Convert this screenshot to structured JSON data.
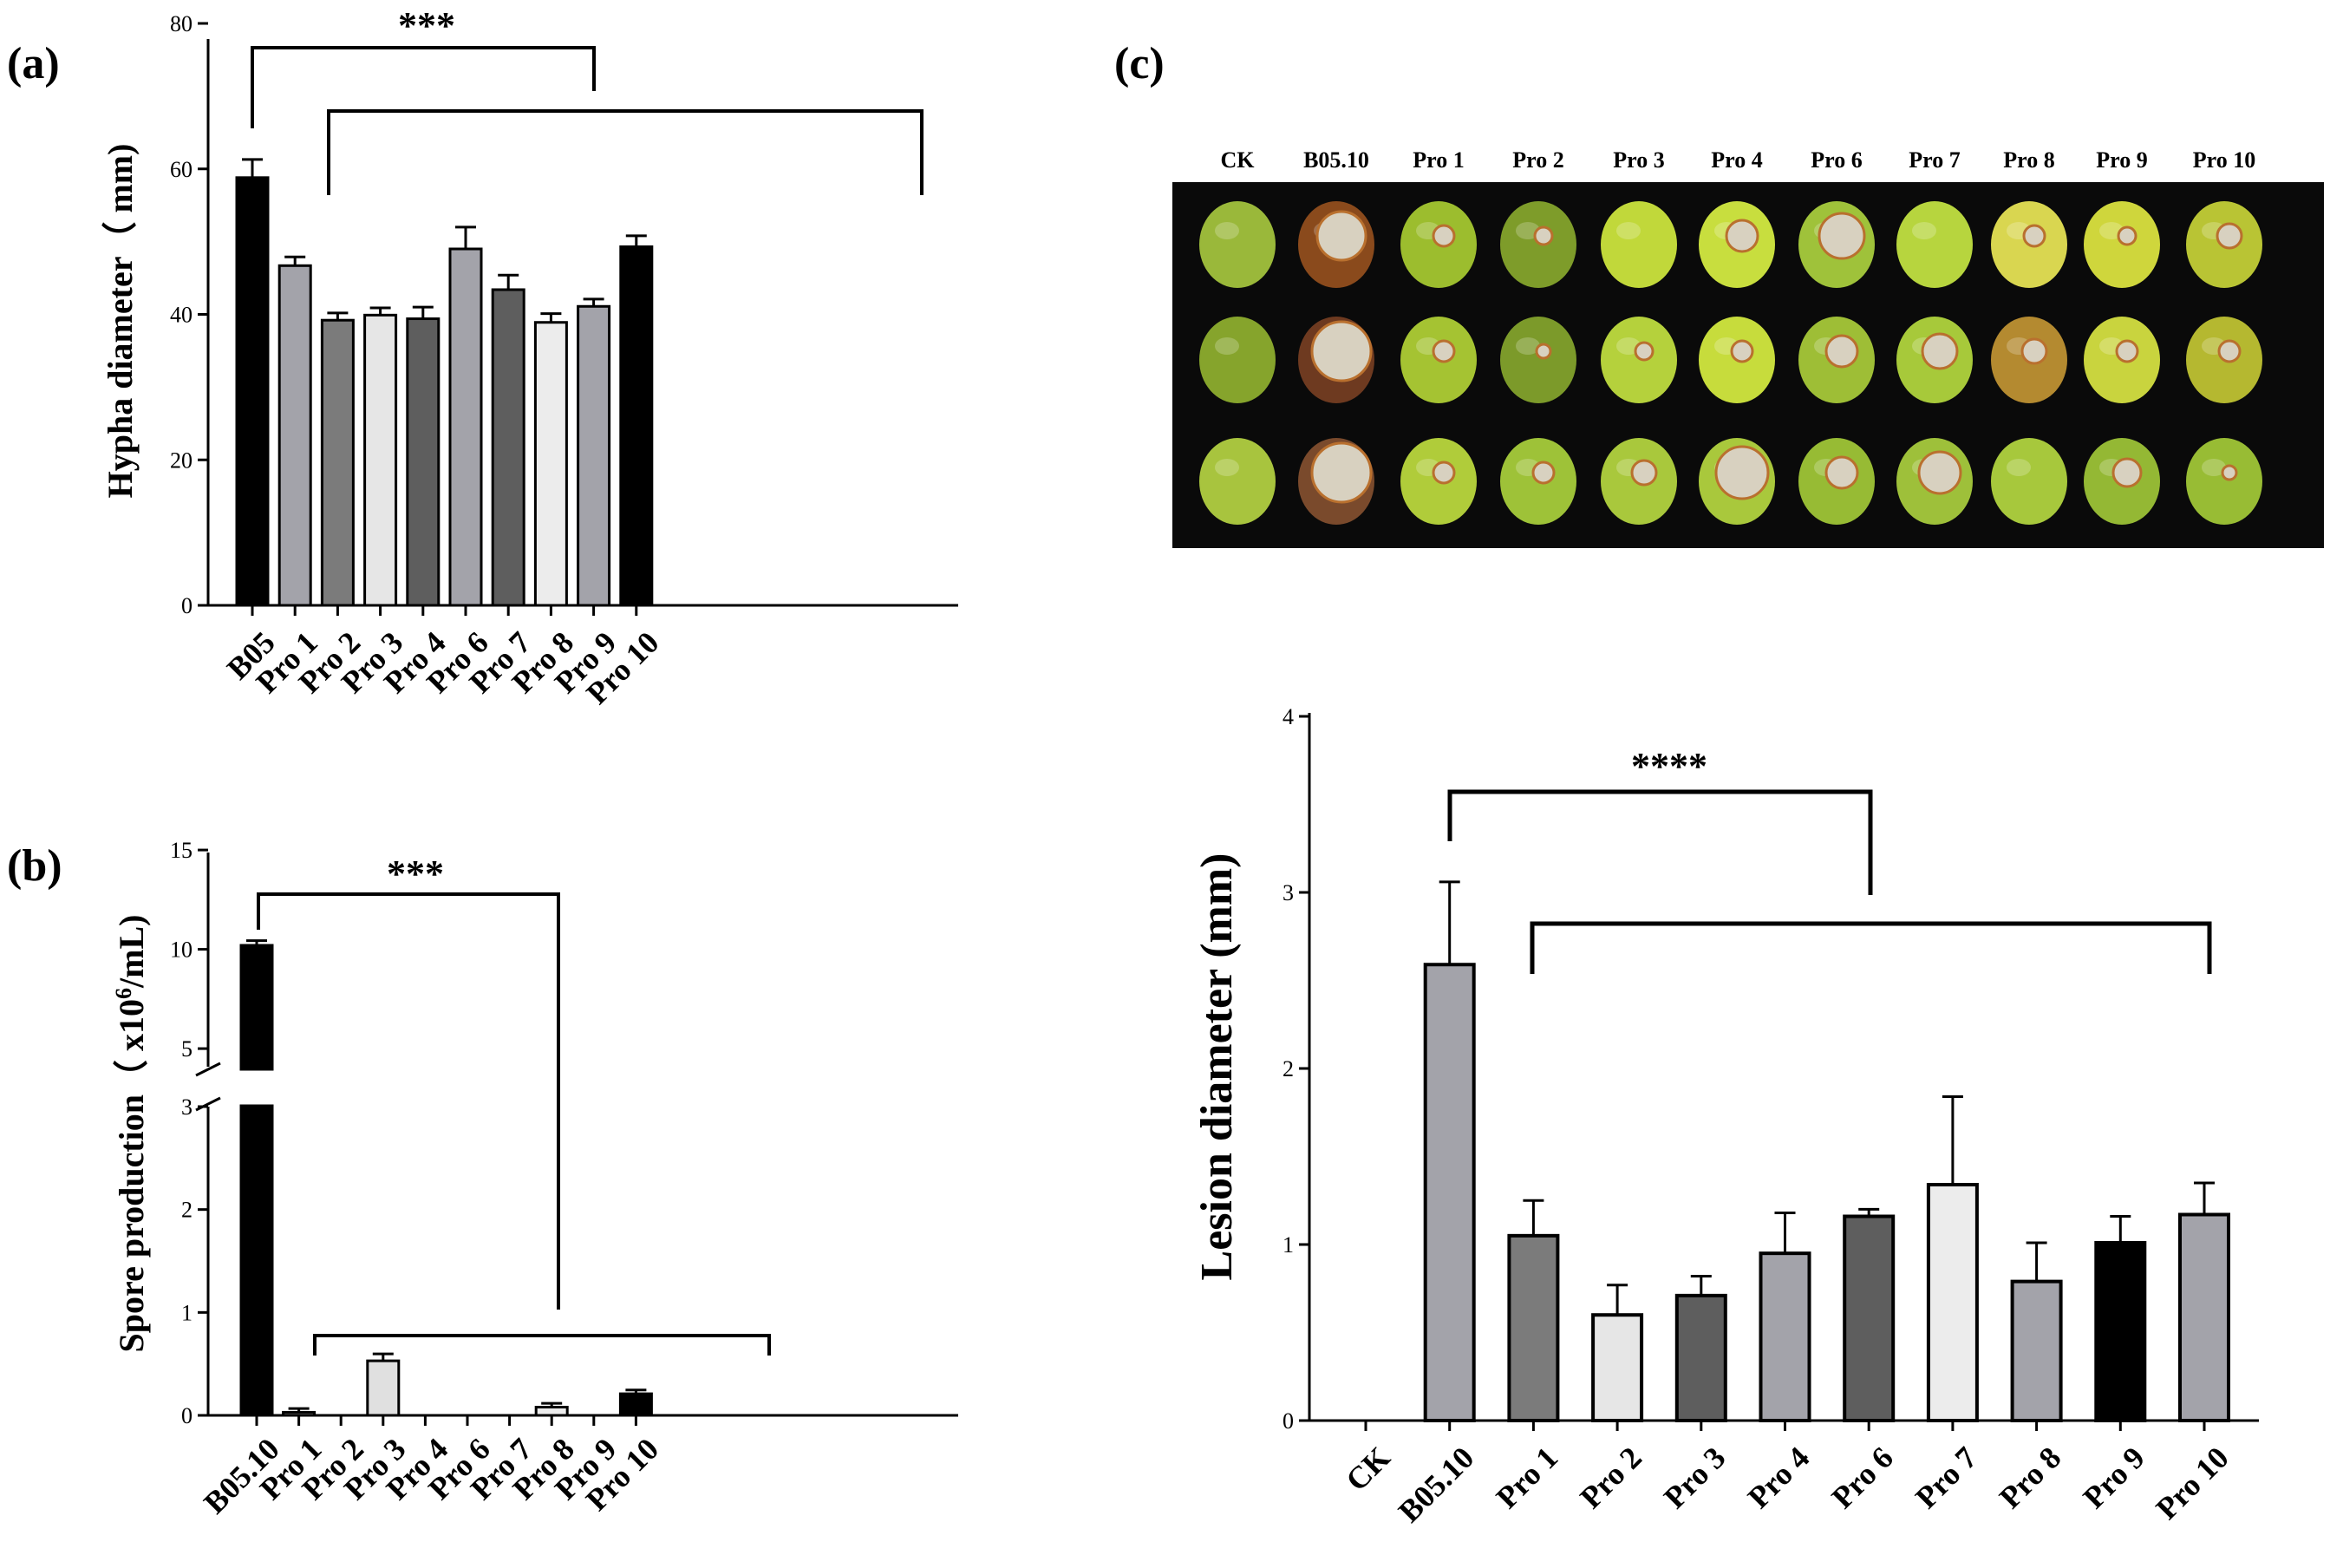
{
  "figure": {
    "panels": [
      "(a)",
      "(b)",
      "(c)"
    ],
    "photo_labels": [
      "CK",
      "B05.10",
      "Pro 1",
      "Pro 2",
      "Pro 3",
      "Pro 4",
      "Pro 6",
      "Pro 7",
      "Pro 8",
      "Pro 9",
      "Pro 10"
    ]
  },
  "chart_data": [
    {
      "id": "a",
      "type": "bar",
      "panel": "(a)",
      "categories": [
        "B05",
        "Pro 1",
        "Pro 2",
        "Pro 3",
        "Pro 4",
        "Pro 6",
        "Pro 7",
        "Pro 8",
        "Pro 9",
        "Pro 10"
      ],
      "values": [
        58.8,
        46.7,
        39.2,
        39.9,
        39.4,
        49.0,
        43.4,
        38.9,
        41.1,
        49.3
      ],
      "errors": [
        2.5,
        1.2,
        1.0,
        1.0,
        1.6,
        3.0,
        2.0,
        1.2,
        1.0,
        1.5
      ],
      "colors": [
        "#000000",
        "#a3a3aa",
        "#7b7b7b",
        "#e6e6e6",
        "#5e5e5e",
        "#a3a3aa",
        "#5e5e5e",
        "#ececec",
        "#a3a3aa",
        "#000000"
      ],
      "ylabel": "Hypha diameter（ mm)",
      "ylim": [
        0,
        80
      ],
      "yticks": [
        "0",
        "20",
        "40",
        "60",
        "80"
      ],
      "significance": "***"
    },
    {
      "id": "b",
      "type": "bar",
      "panel": "(b)",
      "categories": [
        "B05.10",
        "Pro 1",
        "Pro 2",
        "Pro 3",
        "Pro 4",
        "Pro 6",
        "Pro 7",
        "Pro 8",
        "Pro 9",
        "Pro 10"
      ],
      "values": [
        10.2,
        0.03,
        0.0,
        0.53,
        0.0,
        0.0,
        0.0,
        0.08,
        0.0,
        0.21
      ],
      "errors": [
        0.15,
        0.02,
        0.0,
        0.05,
        0.0,
        0.0,
        0.0,
        0.02,
        0.0,
        0.02
      ],
      "colors": [
        "#000000",
        "#7b7b7b",
        "#7b7b7b",
        "#e0e0e0",
        "#5e5e5e",
        "#a3a3aa",
        "#5e5e5e",
        "#ececec",
        "#a3a3aa",
        "#000000"
      ],
      "ylabel_main": "Spore production（ x10",
      "ylabel_sup": "6",
      "ylabel_tail": "/mL)",
      "ylim": [
        0,
        15
      ],
      "axis_break": [
        3,
        4
      ],
      "yticks_lower": [
        "0",
        "1",
        "2",
        "3"
      ],
      "yticks_upper": [
        "5",
        "10",
        "15"
      ],
      "significance": "***"
    },
    {
      "id": "c",
      "type": "bar",
      "panel": "(c)",
      "categories": [
        "CK",
        "B05.10",
        "Pro 1",
        "Pro 2",
        "Pro 3",
        "Pro 4",
        "Pro 6",
        "Pro 7",
        "Pro 8",
        "Pro 9",
        "Pro 10"
      ],
      "values": [
        0,
        2.59,
        1.05,
        0.6,
        0.71,
        0.95,
        1.16,
        1.34,
        0.79,
        1.01,
        1.17
      ],
      "errors": [
        0,
        0.47,
        0.2,
        0.17,
        0.11,
        0.23,
        0.04,
        0.5,
        0.22,
        0.15,
        0.18
      ],
      "colors": [
        "#a3a3aa",
        "#a3a3aa",
        "#7b7b7b",
        "#e6e6e6",
        "#5e5e5e",
        "#a3a3aa",
        "#5e5e5e",
        "#ececec",
        "#a3a3aa",
        "#000000",
        "#a3a3aa"
      ],
      "ylabel": "Lesion diameter (mm)",
      "ylim": [
        0,
        4
      ],
      "yticks": [
        "0",
        "1",
        "2",
        "3",
        "4"
      ],
      "significance": "****"
    }
  ]
}
